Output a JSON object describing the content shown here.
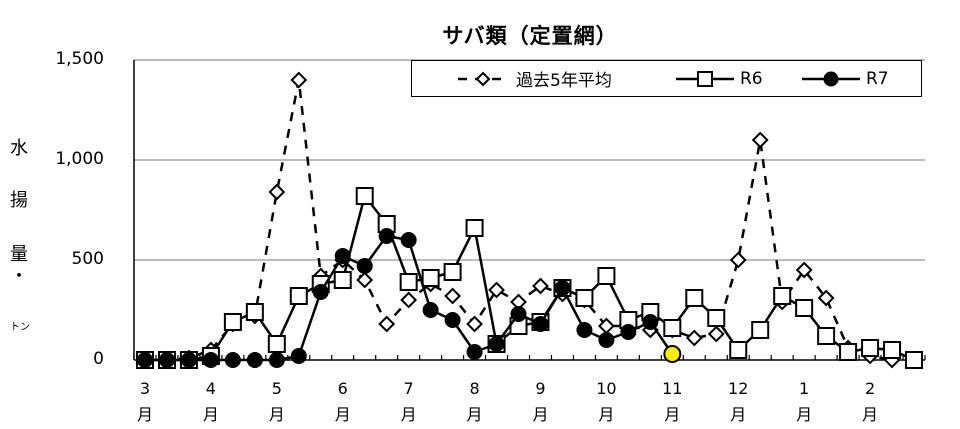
{
  "chart_data": {
    "type": "line",
    "title": "サバ類（定置網）",
    "xlabel": "",
    "ylabel": "水揚量・トン",
    "ylim": [
      0,
      1500
    ],
    "yticks": [
      0,
      500,
      1000,
      1500
    ],
    "ytick_labels": [
      "0",
      "500",
      "1,000",
      "1,500"
    ],
    "grid": "horizontal",
    "legend_position": "top-right",
    "x_unit": "旬 (3 per month: 上旬/中旬/下旬)",
    "month_labels": [
      "3\n月",
      "4\n月",
      "5\n月",
      "6\n月",
      "7\n月",
      "8\n月",
      "9\n月",
      "10\n月",
      "11\n月",
      "12\n月",
      "1\n月",
      "2\n月"
    ],
    "series": [
      {
        "name": "過去5年平均",
        "style": "dashed",
        "marker": "diamond-open",
        "values": [
          0,
          0,
          10,
          50,
          180,
          220,
          840,
          1400,
          420,
          500,
          400,
          180,
          300,
          380,
          320,
          180,
          350,
          290,
          370,
          330,
          300,
          170,
          170,
          150,
          150,
          110,
          130,
          500,
          1100,
          290,
          450,
          310,
          60,
          20,
          0,
          null
        ]
      },
      {
        "name": "R6",
        "style": "solid",
        "marker": "square-open",
        "values": [
          0,
          0,
          0,
          20,
          190,
          240,
          80,
          320,
          380,
          400,
          820,
          680,
          390,
          410,
          440,
          660,
          80,
          170,
          190,
          360,
          310,
          420,
          200,
          240,
          160,
          310,
          210,
          50,
          150,
          320,
          260,
          120,
          40,
          60,
          50,
          0
        ]
      },
      {
        "name": "R7",
        "style": "solid",
        "marker": "circle-filled",
        "values": [
          0,
          0,
          0,
          0,
          0,
          0,
          0,
          20,
          340,
          520,
          470,
          620,
          600,
          250,
          200,
          40,
          80,
          230,
          180,
          360,
          150,
          100,
          140,
          190,
          30,
          null,
          null,
          null,
          null,
          null,
          null,
          null,
          null,
          null,
          null,
          null
        ],
        "highlight": {
          "index": 24,
          "color": "#ffee00",
          "note": "latest point"
        }
      }
    ]
  },
  "header": {
    "title": "サバ類（定置網）"
  },
  "legend": {
    "items": [
      {
        "label": "過去5年平均"
      },
      {
        "label": "R6"
      },
      {
        "label": "R7"
      }
    ]
  },
  "axes": {
    "y_title_chars": [
      "水",
      "揚",
      "量",
      "・",
      "トン"
    ],
    "y_tick_labels": [
      "1,500",
      "1,000",
      "500",
      "0"
    ],
    "x_months": [
      {
        "num": "3",
        "unit": "月"
      },
      {
        "num": "4",
        "unit": "月"
      },
      {
        "num": "5",
        "unit": "月"
      },
      {
        "num": "6",
        "unit": "月"
      },
      {
        "num": "7",
        "unit": "月"
      },
      {
        "num": "8",
        "unit": "月"
      },
      {
        "num": "9",
        "unit": "月"
      },
      {
        "num": "10",
        "unit": "月"
      },
      {
        "num": "11",
        "unit": "月"
      },
      {
        "num": "12",
        "unit": "月"
      },
      {
        "num": "1",
        "unit": "月"
      },
      {
        "num": "2",
        "unit": "月"
      }
    ]
  },
  "colors": {
    "line": "#000000",
    "grid": "#a6a6a6",
    "highlight": "#ffee00"
  }
}
